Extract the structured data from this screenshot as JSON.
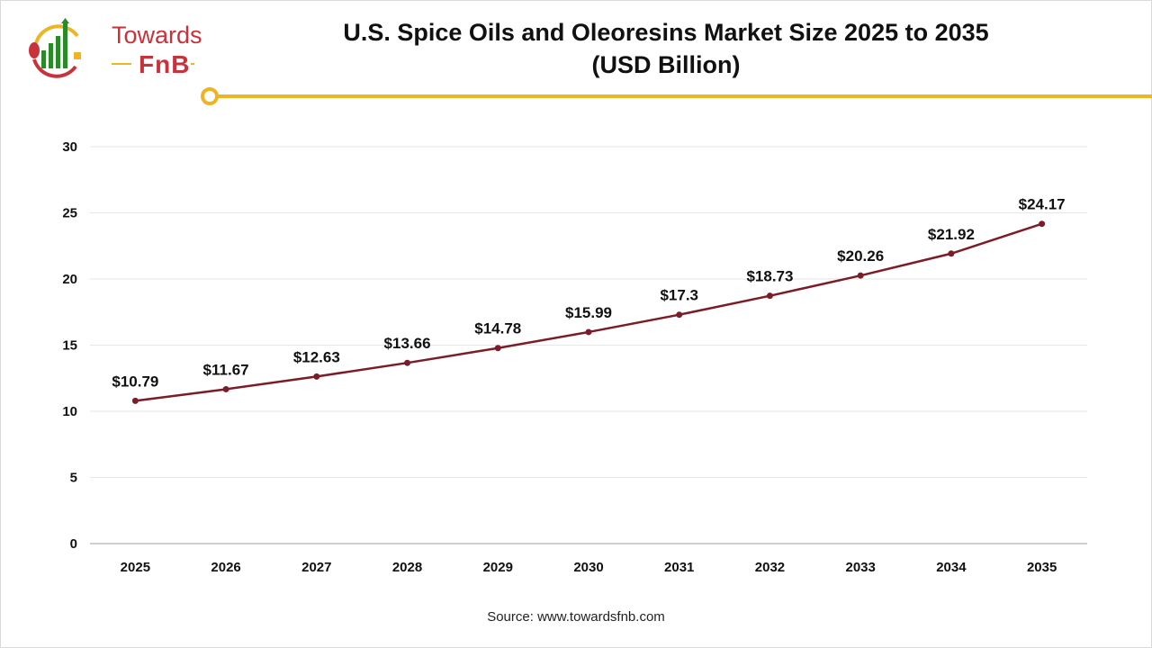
{
  "logo": {
    "line1": "Towards",
    "line2": "FnB"
  },
  "title_line1": "U.S. Spice Oils and Oleoresins Market Size 2025 to 2035",
  "title_line2": "(USD Billion)",
  "source": "Source: www.towardsfnb.com",
  "colors": {
    "line": "#7b1c28",
    "accent": "#f0b323",
    "brand": "#c8323a"
  },
  "chart_data": {
    "type": "line",
    "title": "U.S. Spice Oils and Oleoresins Market Size 2025 to 2035 (USD Billion)",
    "categories": [
      "2025",
      "2026",
      "2027",
      "2028",
      "2029",
      "2030",
      "2031",
      "2032",
      "2033",
      "2034",
      "2035"
    ],
    "values": [
      10.79,
      11.67,
      12.63,
      13.66,
      14.78,
      15.99,
      17.3,
      18.73,
      20.26,
      21.92,
      24.17
    ],
    "data_labels": [
      "$10.79",
      "$11.67",
      "$12.63",
      "$13.66",
      "$14.78",
      "$15.99",
      "$17.3",
      "$18.73",
      "$20.26",
      "$21.92",
      "$24.17"
    ],
    "yticks": [
      "0",
      "5",
      "10",
      "15",
      "20",
      "25",
      "30"
    ],
    "ylim": [
      0,
      30
    ],
    "grid": true,
    "legend": "none"
  }
}
